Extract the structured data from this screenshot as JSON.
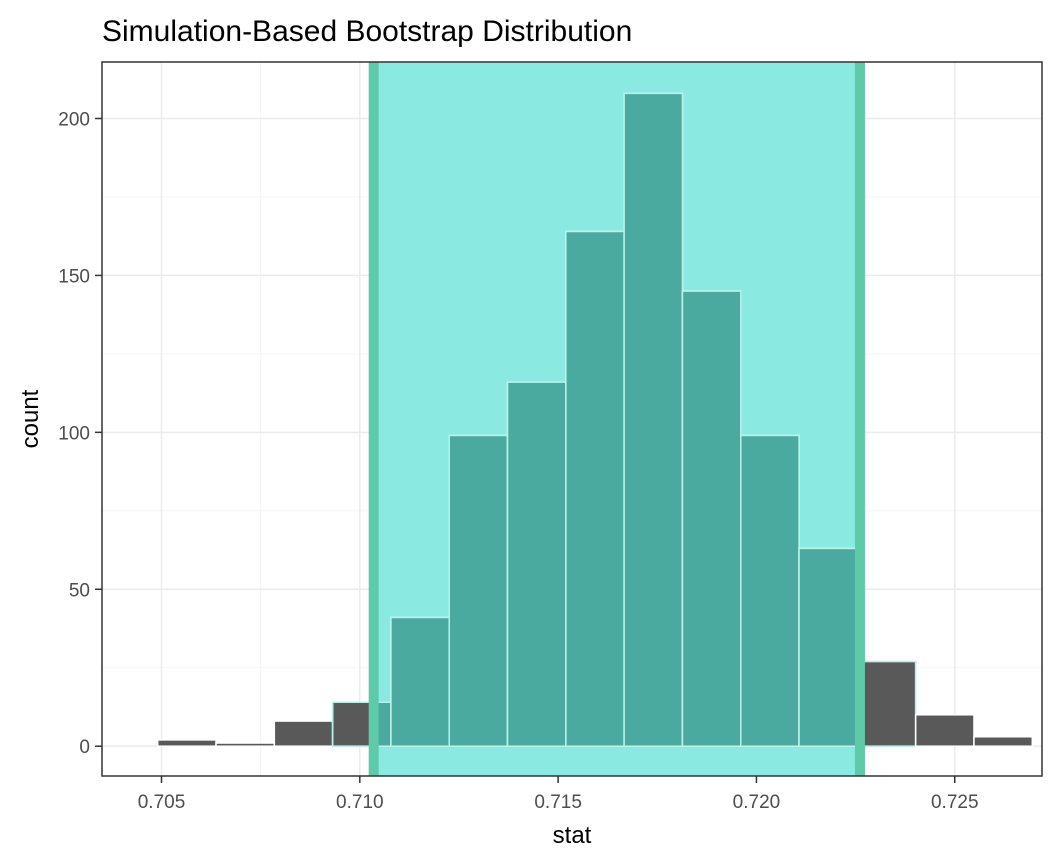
{
  "chart_data": {
    "type": "bar",
    "title": "Simulation-Based Bootstrap Distribution",
    "xlabel": "stat",
    "ylabel": "count",
    "xlim": [
      0.7035,
      0.7272
    ],
    "ylim": [
      -9.5,
      218
    ],
    "x_ticks": [
      0.705,
      0.71,
      0.715,
      0.72,
      0.725
    ],
    "x_tick_labels": [
      "0.705",
      "0.710",
      "0.715",
      "0.720",
      "0.725"
    ],
    "y_ticks": [
      0,
      50,
      100,
      150,
      200
    ],
    "y_tick_labels": [
      "0",
      "50",
      "100",
      "150",
      "200"
    ],
    "bin_width": 0.00147,
    "bins": [
      {
        "x": 0.70564,
        "count": 2
      },
      {
        "x": 0.70711,
        "count": 1
      },
      {
        "x": 0.70858,
        "count": 8
      },
      {
        "x": 0.71005,
        "count": 14
      },
      {
        "x": 0.71152,
        "count": 41
      },
      {
        "x": 0.71299,
        "count": 99
      },
      {
        "x": 0.71446,
        "count": 116
      },
      {
        "x": 0.71593,
        "count": 164
      },
      {
        "x": 0.7174,
        "count": 208
      },
      {
        "x": 0.71887,
        "count": 145
      },
      {
        "x": 0.72034,
        "count": 99
      },
      {
        "x": 0.72181,
        "count": 63
      },
      {
        "x": 0.72328,
        "count": 27
      },
      {
        "x": 0.72475,
        "count": 10
      },
      {
        "x": 0.72622,
        "count": 3
      }
    ],
    "confidence_interval": {
      "lower": 0.71035,
      "upper": 0.72261
    },
    "grid": true,
    "colors": {
      "bar_fill": "#595959",
      "bar_outline": "#ffffff",
      "ci_fill": "#8aeae1",
      "ci_bar_fill": "#4aaa9f",
      "ci_endpoint": "#5fcaa8",
      "grid_major": "#ebebeb",
      "grid_minor": "#f5f5f5",
      "panel_border": "#333333",
      "tick_text": "#4d4d4d"
    }
  }
}
